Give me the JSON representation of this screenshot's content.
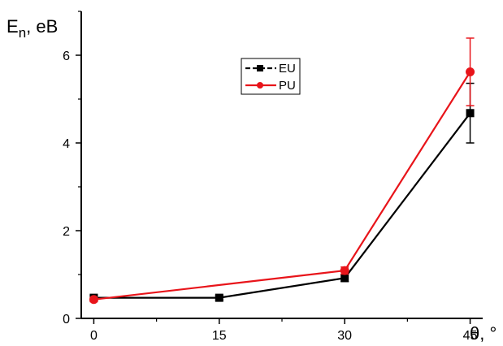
{
  "chart_data": {
    "type": "line",
    "x": [
      0,
      15,
      30,
      45
    ],
    "xticks": [
      "0",
      "15",
      "30",
      "45"
    ],
    "yticks": [
      "0",
      "2",
      "4",
      "6"
    ],
    "xlim": [
      -1.5,
      46.5
    ],
    "ylim": [
      0,
      7.0
    ],
    "xlabel": "θ, °",
    "ylabel_main": "E",
    "ylabel_sub": "n",
    "ylabel_tail": ", eB",
    "grid": false,
    "legend_position": "top-center",
    "series": [
      {
        "name": "EU",
        "color": "#000000",
        "marker": "square",
        "dashed_legend": true,
        "values": [
          0.47,
          0.47,
          0.92,
          4.68
        ],
        "errors": [
          0.05,
          0.05,
          0.08,
          0.68
        ]
      },
      {
        "name": "PU",
        "color": "#e8141a",
        "marker": "circle",
        "dashed_legend": false,
        "values": [
          0.43,
          null,
          1.09,
          5.62
        ],
        "errors": [
          0.05,
          null,
          0.08,
          0.77
        ]
      }
    ]
  }
}
